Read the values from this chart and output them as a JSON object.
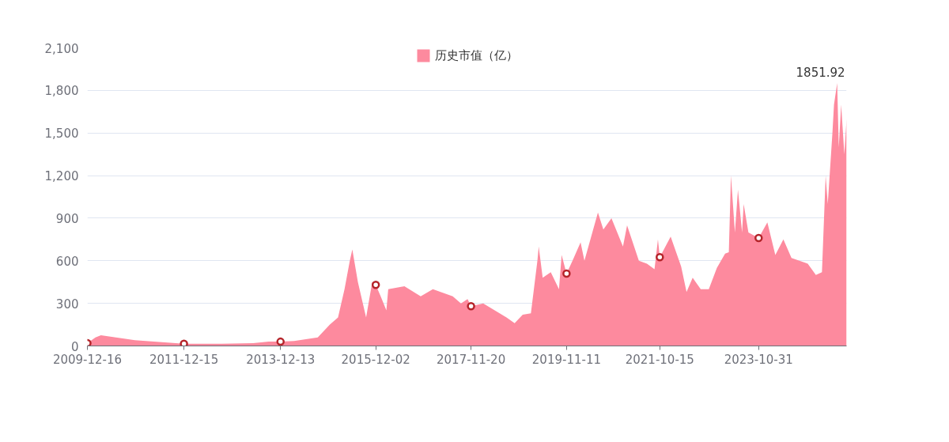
{
  "chart_data": {
    "type": "area",
    "x": [
      "2009-12-16",
      "2010-02-15",
      "2010-03-28",
      "2010-12-10",
      "2011-12-15",
      "2012-09-25",
      "2013-05-20",
      "2013-09-15",
      "2013-12-13",
      "2014-03-25",
      "2014-09-20",
      "2014-12-20",
      "2015-02-20",
      "2015-04-10",
      "2015-05-20",
      "2015-06-08",
      "2015-07-20",
      "2015-09-20",
      "2015-11-05",
      "2015-12-02",
      "2016-01-08",
      "2016-02-20",
      "2016-03-05",
      "2016-07-05",
      "2016-11-05",
      "2017-02-05",
      "2017-07-05",
      "2017-09-05",
      "2017-10-25",
      "2017-11-20",
      "2018-02-20",
      "2018-08-15",
      "2018-10-15",
      "2018-12-15",
      "2019-02-15",
      "2019-04-05",
      "2019-04-15",
      "2019-05-15",
      "2019-07-15",
      "2019-09-15",
      "2019-10-05",
      "2019-11-11",
      "2019-12-26",
      "2020-02-25",
      "2020-03-25",
      "2020-07-05",
      "2020-08-15",
      "2020-10-15",
      "2021-01-10",
      "2021-02-10",
      "2021-05-10",
      "2021-07-10",
      "2021-09-05",
      "2021-10-01",
      "2021-10-15",
      "2022-01-05",
      "2022-03-25",
      "2022-05-05",
      "2022-06-20",
      "2022-08-20",
      "2022-10-20",
      "2022-12-20",
      "2023-02-20",
      "2023-03-20",
      "2023-04-05",
      "2023-05-05",
      "2023-05-28",
      "2023-06-28",
      "2023-07-10",
      "2023-08-15",
      "2023-10-31",
      "2024-01-05",
      "2024-03-05",
      "2024-05-05",
      "2024-07-05",
      "2024-11-05",
      "2025-01-05",
      "2025-02-20",
      "2025-03-20",
      "2025-04-05",
      "2025-05-10",
      "2025-05-22",
      "2025-06-15",
      "2025-06-27",
      "2025-07-15",
      "2025-08-08",
      "2025-08-25"
    ],
    "series": [
      {
        "name": "历史市值（亿）",
        "color": "#fd8a9e",
        "values": [
          20,
          60,
          75,
          40,
          15,
          15,
          20,
          30,
          30,
          35,
          60,
          150,
          200,
          400,
          600,
          680,
          450,
          200,
          450,
          430,
          350,
          250,
          400,
          420,
          350,
          400,
          350,
          300,
          330,
          280,
          300,
          200,
          160,
          220,
          230,
          600,
          700,
          480,
          520,
          400,
          640,
          510,
          600,
          730,
          600,
          940,
          820,
          900,
          700,
          850,
          600,
          580,
          540,
          750,
          625,
          770,
          560,
          380,
          480,
          400,
          400,
          550,
          650,
          660,
          1200,
          800,
          1100,
          800,
          1000,
          800,
          760,
          870,
          640,
          750,
          620,
          580,
          500,
          520,
          1200,
          1000,
          1500,
          1700,
          1851.92,
          1400,
          1700,
          1350,
          1600
        ]
      },
      {
        "type": "scatter",
        "color": "#b5242a",
        "marker": "circle",
        "x": [
          "2009-12-16",
          "2011-12-15",
          "2013-12-13",
          "2015-12-02",
          "2017-11-20",
          "2019-11-11",
          "2021-10-15",
          "2023-10-31"
        ],
        "values": [
          20,
          15,
          30,
          430,
          280,
          510,
          625,
          760
        ]
      }
    ],
    "xlim": [
      "2009-12-16",
      "2025-08-25"
    ],
    "xticks": [
      "2009-12-16",
      "2011-12-15",
      "2013-12-13",
      "2015-12-02",
      "2017-11-20",
      "2019-11-11",
      "2021-10-15",
      "2023-10-31"
    ],
    "ylim": [
      0,
      2100
    ],
    "yticks": [
      0,
      300,
      600,
      900,
      {
        "value": 1200,
        "label": "1,200"
      },
      {
        "value": 1500,
        "label": "1,500"
      },
      {
        "value": 1800,
        "label": "1,800"
      },
      {
        "value": 2100,
        "label": "2,100"
      }
    ],
    "grid": "y",
    "legend": "top",
    "annotations": [
      {
        "text": "1851.92",
        "x": "2025-06-15",
        "y": 1851.92
      }
    ]
  }
}
